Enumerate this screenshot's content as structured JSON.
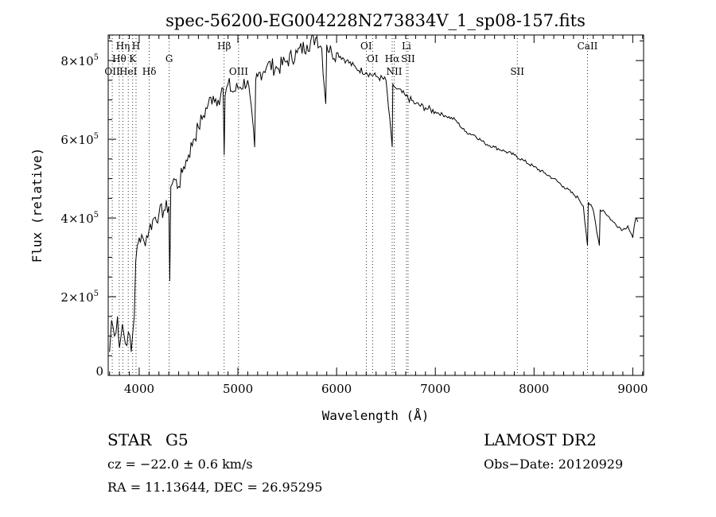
{
  "chart_data": {
    "type": "line",
    "title": "spec-56200-EG004228N273834V_1_sp08-157.fits",
    "xlabel": "Wavelength (Å)",
    "ylabel": "Flux (relative)",
    "xlim": [
      3686,
      9110
    ],
    "ylim": [
      0,
      865000
    ],
    "x_ticks": [
      4000,
      5000,
      6000,
      7000,
      8000,
      9000
    ],
    "x_tick_labels": [
      "4000",
      "5000",
      "6000",
      "7000",
      "8000",
      "9000"
    ],
    "y_ticks": [
      0,
      200000,
      400000,
      600000,
      800000
    ],
    "y_tick_labels": [
      {
        "mant": "0",
        "exp": ""
      },
      {
        "mant": "2×10",
        "exp": "5"
      },
      {
        "mant": "4×10",
        "exp": "5"
      },
      {
        "mant": "6×10",
        "exp": "5"
      },
      {
        "mant": "8×10",
        "exp": "5"
      }
    ],
    "grid": false,
    "series": [
      {
        "name": "spectrum",
        "x": [
          3700,
          3720,
          3750,
          3780,
          3800,
          3830,
          3860,
          3890,
          3920,
          3950,
          3965,
          3980,
          4000,
          4050,
          4100,
          4150,
          4200,
          4250,
          4300,
          4310,
          4320,
          4350,
          4400,
          4450,
          4500,
          4550,
          4600,
          4650,
          4700,
          4750,
          4800,
          4850,
          4861,
          4870,
          4900,
          4950,
          5000,
          5100,
          5170,
          5180,
          5200,
          5300,
          5400,
          5500,
          5600,
          5700,
          5800,
          5850,
          5890,
          5900,
          5950,
          6000,
          6100,
          6200,
          6300,
          6400,
          6500,
          6563,
          6570,
          6600,
          6700,
          6800,
          6900,
          7000,
          7100,
          7200,
          7300,
          7400,
          7500,
          7600,
          7700,
          7800,
          7900,
          8000,
          8100,
          8200,
          8300,
          8400,
          8450,
          8500,
          8542,
          8550,
          8600,
          8662,
          8670,
          8700,
          8800,
          8900,
          8950,
          9000,
          9030,
          9050
        ],
        "y": [
          60000,
          140000,
          100000,
          150000,
          70000,
          130000,
          80000,
          110000,
          60000,
          150000,
          290000,
          330000,
          350000,
          340000,
          370000,
          400000,
          410000,
          420000,
          430000,
          240000,
          480000,
          500000,
          480000,
          530000,
          560000,
          600000,
          630000,
          660000,
          690000,
          710000,
          700000,
          730000,
          560000,
          710000,
          740000,
          720000,
          730000,
          750000,
          580000,
          750000,
          760000,
          790000,
          780000,
          800000,
          820000,
          840000,
          860000,
          830000,
          690000,
          840000,
          820000,
          820000,
          800000,
          780000,
          770000,
          760000,
          750000,
          580000,
          740000,
          730000,
          710000,
          690000,
          680000,
          670000,
          660000,
          650000,
          620000,
          610000,
          590000,
          580000,
          570000,
          560000,
          545000,
          530000,
          515000,
          500000,
          480000,
          460000,
          450000,
          430000,
          330000,
          440000,
          420000,
          330000,
          420000,
          420000,
          390000,
          370000,
          380000,
          350000,
          400000,
          390000
        ]
      }
    ],
    "lines": [
      {
        "label": "Hη",
        "wl": 3835,
        "row": 0
      },
      {
        "label": "H",
        "wl": 3968,
        "row": 0
      },
      {
        "label": "Hθ",
        "wl": 3798,
        "row": 1
      },
      {
        "label": "K",
        "wl": 3934,
        "row": 1
      },
      {
        "label": "OII",
        "wl": 3727,
        "row": 2
      },
      {
        "label": "HeI",
        "wl": 3889,
        "row": 2
      },
      {
        "label": "Hδ",
        "wl": 4102,
        "row": 2
      },
      {
        "label": "G",
        "wl": 4304,
        "row": 1
      },
      {
        "label": "Hβ",
        "wl": 4861,
        "row": 0
      },
      {
        "label": "OIII",
        "wl": 5007,
        "row": 2
      },
      {
        "label": "OI",
        "wl": 6300,
        "row": 0
      },
      {
        "label": "OI",
        "wl": 6364,
        "row": 1
      },
      {
        "label": "Hα",
        "wl": 6563,
        "row": 1
      },
      {
        "label": "NII",
        "wl": 6583,
        "row": 2
      },
      {
        "label": "Li",
        "wl": 6708,
        "row": 0
      },
      {
        "label": "SII",
        "wl": 6724,
        "row": 1
      },
      {
        "label": "SII",
        "wl": 7830,
        "row": 2
      },
      {
        "label": "CaII",
        "wl": 8542,
        "row": 0
      }
    ]
  },
  "info": {
    "class": "STAR",
    "subclass": "G5",
    "survey": "LAMOST DR2",
    "cz": "cz = −22.0 ± 0.6 km/s",
    "obs_date": "Obs−Date: 20120929",
    "coords": "RA =  11.13644, DEC =  26.95295"
  }
}
